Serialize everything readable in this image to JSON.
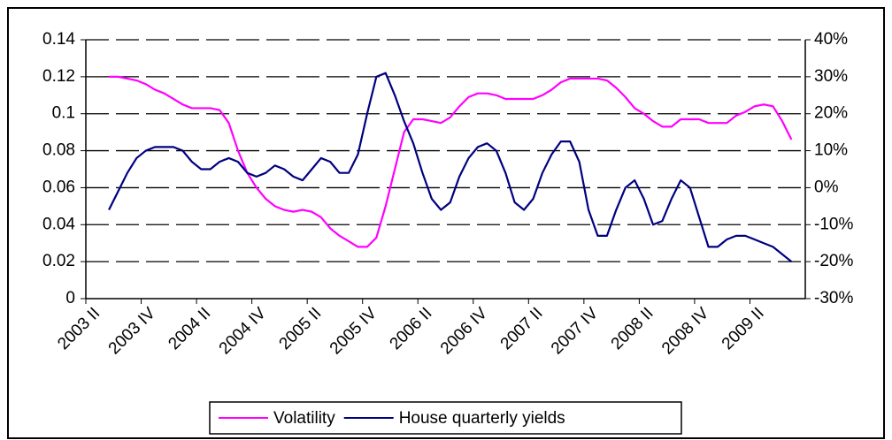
{
  "chart_data": {
    "type": "line",
    "categories": [
      "2003 II",
      null,
      null,
      null,
      null,
      null,
      "2003 IV",
      null,
      null,
      null,
      null,
      null,
      "2004 II",
      null,
      null,
      null,
      null,
      null,
      "2004 IV",
      null,
      null,
      null,
      null,
      null,
      "2005 II",
      null,
      null,
      null,
      null,
      null,
      "2005 IV",
      null,
      null,
      null,
      null,
      null,
      "2006 II",
      null,
      null,
      null,
      null,
      null,
      "2006 IV",
      null,
      null,
      null,
      null,
      null,
      "2007 II",
      null,
      null,
      null,
      null,
      null,
      "2007 IV",
      null,
      null,
      null,
      null,
      null,
      "2008 II",
      null,
      null,
      null,
      null,
      null,
      "2008 IV",
      null,
      null,
      null,
      null,
      null,
      "2009 II",
      null,
      null,
      null,
      null,
      null
    ],
    "series": [
      {
        "name": "Volatility",
        "color": "#ff00ff",
        "values": [
          null,
          null,
          0.12,
          0.12,
          0.119,
          0.118,
          0.116,
          0.113,
          0.111,
          0.108,
          0.105,
          0.103,
          0.103,
          0.103,
          0.102,
          0.095,
          0.08,
          0.068,
          0.06,
          0.054,
          0.05,
          0.048,
          0.047,
          0.048,
          0.047,
          0.044,
          0.038,
          0.034,
          0.031,
          0.028,
          0.028,
          0.033,
          0.05,
          0.07,
          0.09,
          0.097,
          0.097,
          0.096,
          0.095,
          0.098,
          0.104,
          0.109,
          0.111,
          0.111,
          0.11,
          0.108,
          0.108,
          0.108,
          0.108,
          0.11,
          0.113,
          0.117,
          0.119,
          0.119,
          0.119,
          0.119,
          0.118,
          0.114,
          0.109,
          0.103,
          0.1,
          0.096,
          0.093,
          0.093,
          0.097,
          0.097,
          0.097,
          0.095,
          0.095,
          0.095,
          0.099,
          0.101,
          0.104,
          0.105,
          0.104,
          0.096,
          0.086,
          null
        ]
      },
      {
        "name": "House quarterly yields",
        "color": "#000080",
        "axis": "y2",
        "values": [
          null,
          null,
          -6,
          -1,
          4,
          8,
          10,
          11,
          11,
          11,
          10,
          7,
          5,
          5,
          7,
          8,
          7,
          4,
          3,
          4,
          6,
          5,
          3,
          2,
          5,
          8,
          7,
          4,
          4,
          9,
          20,
          30,
          31,
          25,
          18,
          12,
          4,
          -3,
          -6,
          -4,
          3,
          8,
          11,
          12,
          10,
          4,
          -4,
          -6,
          -3,
          4,
          9,
          12.5,
          12.5,
          7,
          -6,
          -13,
          -13,
          -6,
          0,
          2,
          -3,
          -10,
          -9,
          -3,
          2,
          0,
          -8,
          -16,
          -16,
          -14,
          -13,
          -13,
          -14,
          -15,
          -16,
          -18,
          -20,
          null
        ]
      }
    ],
    "ylim": [
      0,
      0.14
    ],
    "yticks": [
      0,
      0.02,
      0.04,
      0.06,
      0.08,
      0.1,
      0.12,
      0.14
    ],
    "y2lim": [
      -30,
      40
    ],
    "y2ticks": [
      {
        "value": -30,
        "label": "-30%"
      },
      {
        "value": -20,
        "label": "-20%"
      },
      {
        "value": -10,
        "label": "-10%"
      },
      {
        "value": 0,
        "label": "0%"
      },
      {
        "value": 10,
        "label": "10%"
      },
      {
        "value": 20,
        "label": "20%"
      },
      {
        "value": 30,
        "label": "30%"
      },
      {
        "value": 40,
        "label": "40%"
      }
    ],
    "grid": true,
    "legend": "bottom"
  }
}
